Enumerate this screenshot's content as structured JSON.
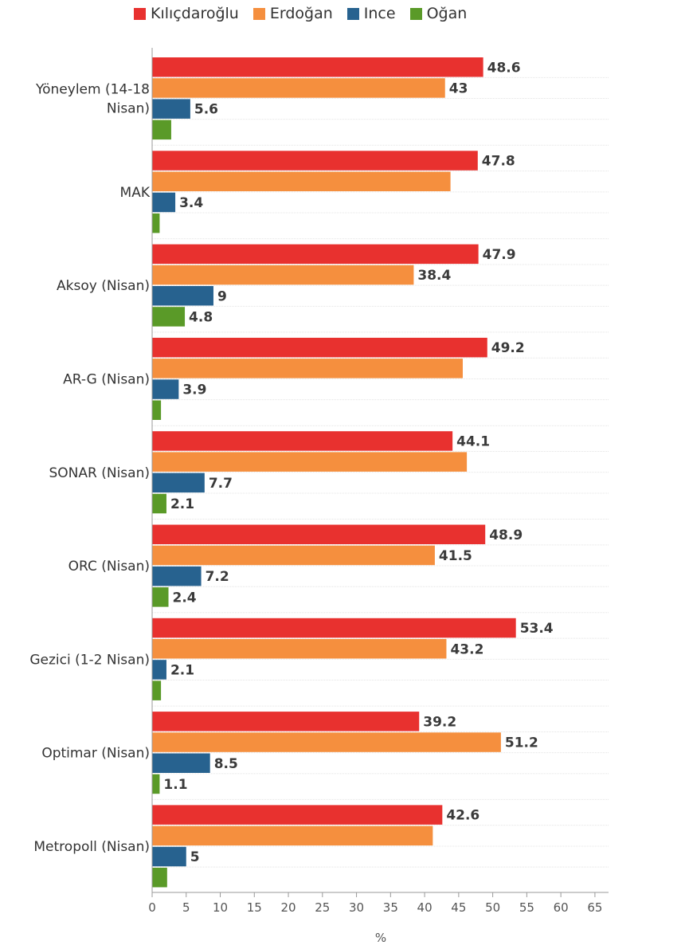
{
  "chart_data": {
    "type": "bar",
    "orientation": "horizontal",
    "categories": [
      [
        "Yöneylem (14-18",
        "Nisan)"
      ],
      [
        "MAK"
      ],
      [
        "Aksoy (Nisan)"
      ],
      [
        "AR-G (Nisan)"
      ],
      [
        "SONAR (Nisan)"
      ],
      [
        "ORC (Nisan)"
      ],
      [
        "Gezici (1-2 Nisan)"
      ],
      [
        "Optimar (Nisan)"
      ],
      [
        "Metropoll (Nisan)"
      ]
    ],
    "series": [
      {
        "name": "Kılıçdaroğlu",
        "color": "#e8312f",
        "values": [
          48.6,
          47.8,
          47.9,
          49.2,
          44.1,
          48.9,
          53.4,
          39.2,
          42.6
        ],
        "labels": [
          "48.6",
          "47.8",
          "47.9",
          "49.2",
          "44.1",
          "48.9",
          "53.4",
          "39.2",
          "42.6"
        ]
      },
      {
        "name": "Erdoğan",
        "color": "#f58f3e",
        "values": [
          43,
          43.8,
          38.4,
          45.6,
          46.2,
          41.5,
          43.2,
          51.2,
          41.2
        ],
        "labels": [
          "43",
          "",
          "38.4",
          "",
          "",
          "41.5",
          "43.2",
          "51.2",
          ""
        ]
      },
      {
        "name": "Ince",
        "color": "#27628f",
        "values": [
          5.6,
          3.4,
          9,
          3.9,
          7.7,
          7.2,
          2.1,
          8.5,
          5
        ],
        "labels": [
          "5.6",
          "3.4",
          "9",
          "3.9",
          "7.7",
          "7.2",
          "2.1",
          "8.5",
          "5"
        ]
      },
      {
        "name": "Oğan",
        "color": "#5a9a28",
        "values": [
          2.8,
          1.1,
          4.8,
          1.3,
          2.1,
          2.4,
          1.3,
          1.1,
          2.2
        ],
        "labels": [
          "",
          "",
          "4.8",
          "",
          "2.1",
          "2.4",
          "",
          "1.1",
          ""
        ]
      }
    ],
    "xlim": [
      0,
      67
    ],
    "xticks": [
      0,
      5,
      10,
      15,
      20,
      25,
      30,
      35,
      40,
      45,
      50,
      55,
      60,
      65
    ],
    "xlabel": "%",
    "grid": true,
    "legend_position": "top"
  }
}
